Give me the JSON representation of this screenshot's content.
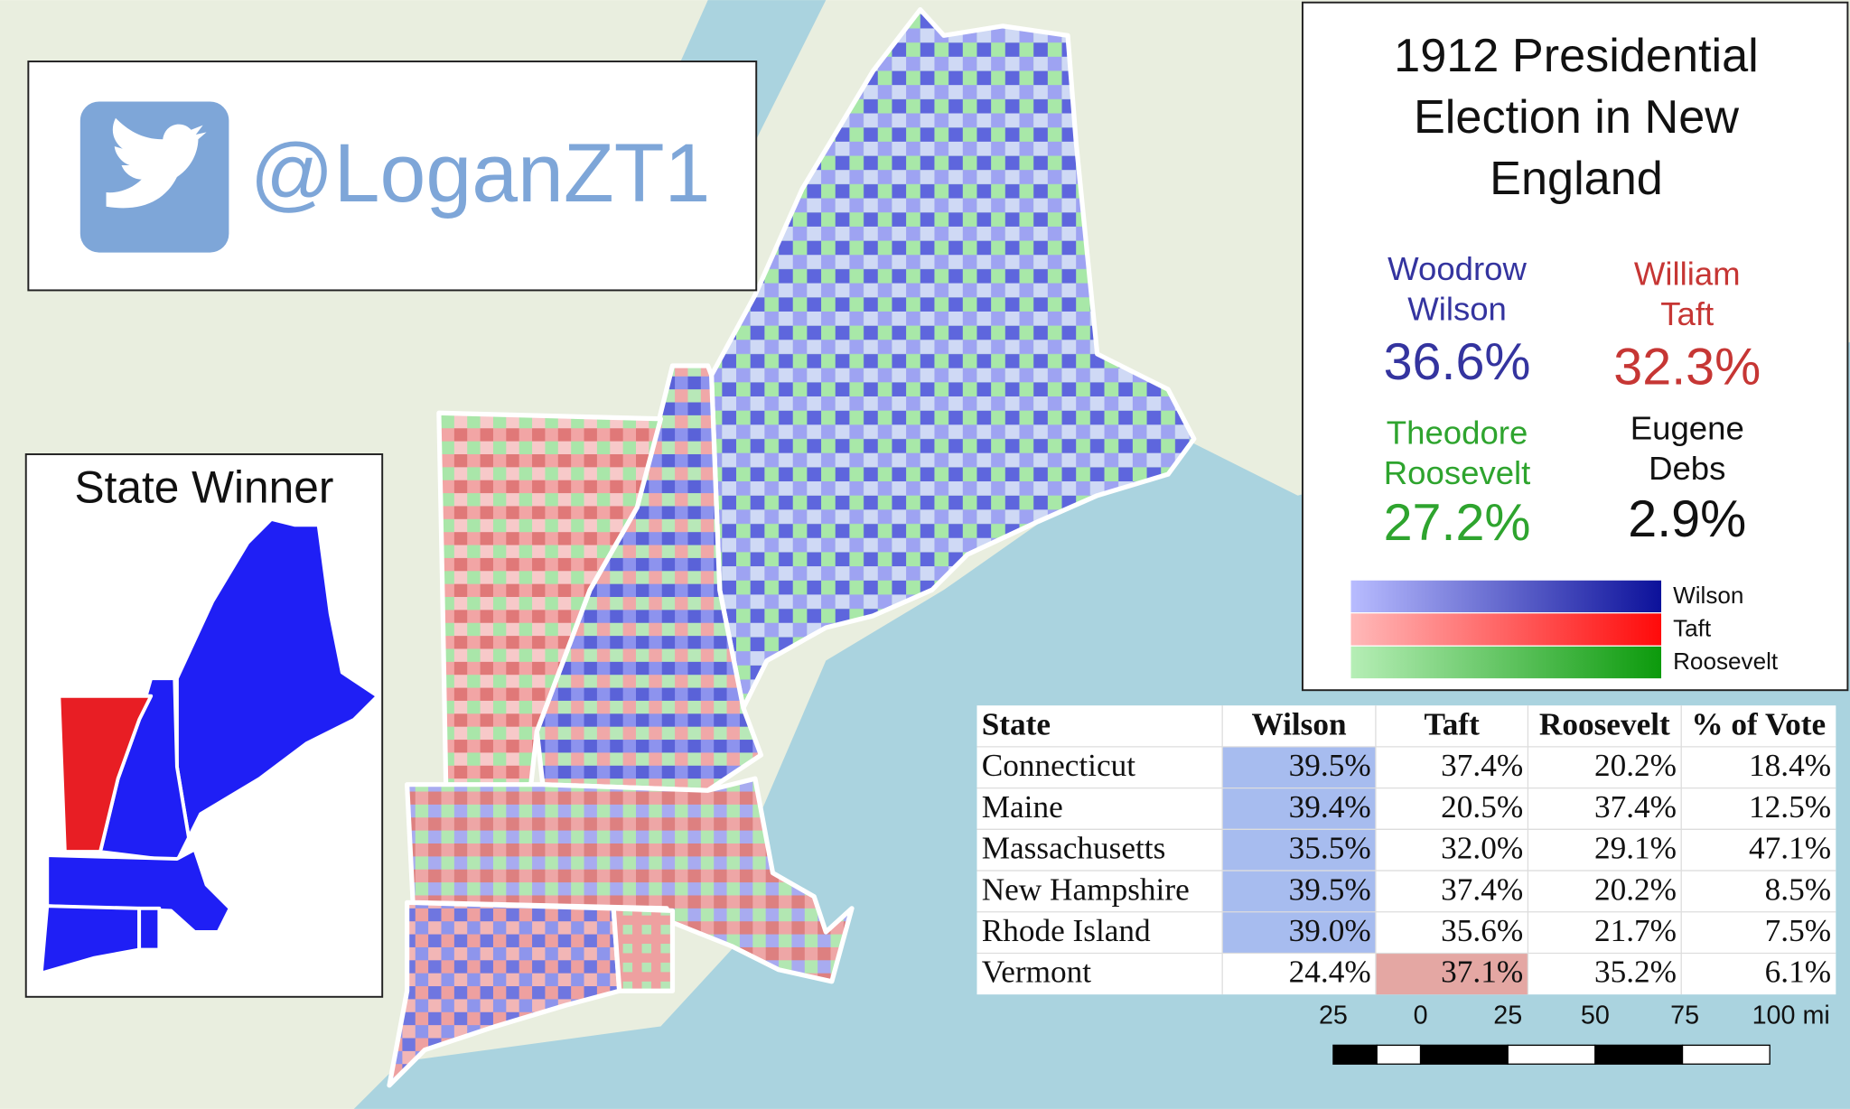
{
  "credit": {
    "handle": "@LoganZT1"
  },
  "inset": {
    "title": "State Winner"
  },
  "legend": {
    "title_lines": [
      "1912 Presidential",
      "Election in New",
      "England"
    ],
    "candidates": [
      {
        "name_lines": [
          "Woodrow",
          "Wilson"
        ],
        "share": "36.6%",
        "color": "#34349f"
      },
      {
        "name_lines": [
          "William",
          "Taft"
        ],
        "share": "32.3%",
        "color": "#c63634"
      },
      {
        "name_lines": [
          "Theodore",
          "Roosevelt"
        ],
        "share": "27.2%",
        "color": "#2ea42e"
      },
      {
        "name_lines": [
          "Eugene",
          "Debs"
        ],
        "share": "2.9%",
        "color": "#111111"
      }
    ],
    "scale_labels": [
      {
        "name": "Wilson",
        "from": "#b8bcff",
        "to": "#0c119a"
      },
      {
        "name": "Taft",
        "from": "#ffb9b9",
        "to": "#ff0a0a"
      },
      {
        "name": "Roosevelt",
        "from": "#b6eeb6",
        "to": "#0c9a0c"
      }
    ]
  },
  "table": {
    "header": [
      "State",
      "Wilson",
      "Taft",
      "Roosevelt",
      "% of Vote"
    ],
    "highlight_colors": [
      "#a7bcef",
      "#e4a7a3",
      "#a7e0a7"
    ],
    "rows": [
      [
        "Connecticut",
        "39.5%",
        "37.4%",
        "20.2%",
        "18.4%"
      ],
      [
        "Maine",
        "39.4%",
        "20.5%",
        "37.4%",
        "12.5%"
      ],
      [
        "Massachusetts",
        "35.5%",
        "32.0%",
        "29.1%",
        "47.1%"
      ],
      [
        "New Hampshire",
        "39.5%",
        "37.4%",
        "20.2%",
        "8.5%"
      ],
      [
        "Rhode Island",
        "39.0%",
        "35.6%",
        "21.7%",
        "7.5%"
      ],
      [
        "Vermont",
        "24.4%",
        "37.1%",
        "35.2%",
        "6.1%"
      ]
    ]
  },
  "scale_bar": {
    "labels": [
      "25",
      "0",
      "25",
      "50",
      "75",
      "100 mi"
    ]
  }
}
